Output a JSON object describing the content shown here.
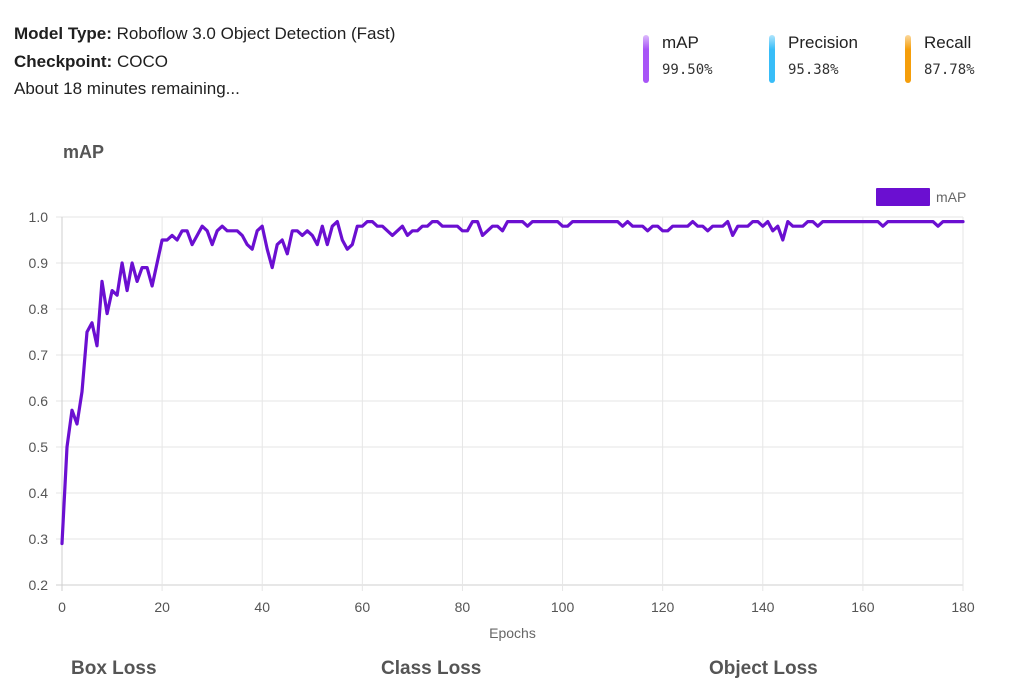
{
  "info": {
    "model_type_label": "Model Type:",
    "model_type_value": "Roboflow 3.0 Object Detection (Fast)",
    "checkpoint_label": "Checkpoint:",
    "checkpoint_value": "COCO",
    "status": "About 18 minutes remaining..."
  },
  "metrics": [
    {
      "label": "mAP",
      "value": "99.50%",
      "color": "#a855f7"
    },
    {
      "label": "Precision",
      "value": "95.38%",
      "color": "#38bdf8"
    },
    {
      "label": "Recall",
      "value": "87.78%",
      "color": "#f59e0b"
    }
  ],
  "chart_title": "mAP",
  "chart_data": {
    "type": "line",
    "xlabel": "Epochs",
    "ylabel": "",
    "xlim": [
      0,
      180
    ],
    "ylim": [
      0.2,
      1.0
    ],
    "xticks": [
      "0",
      "20",
      "40",
      "60",
      "80",
      "100",
      "120",
      "140",
      "160",
      "180"
    ],
    "yticks": [
      "0.2",
      "0.3",
      "0.4",
      "0.5",
      "0.6",
      "0.7",
      "0.8",
      "0.9",
      "1.0"
    ],
    "grid": true,
    "legend": "top-right",
    "series": [
      {
        "name": "mAP",
        "color": "#6b0fd1",
        "x": [
          0,
          1,
          2,
          3,
          4,
          5,
          6,
          7,
          8,
          9,
          10,
          11,
          12,
          13,
          14,
          15,
          16,
          17,
          18,
          19,
          20,
          21,
          22,
          23,
          24,
          25,
          26,
          27,
          28,
          29,
          30,
          31,
          32,
          33,
          34,
          35,
          36,
          37,
          38,
          39,
          40,
          41,
          42,
          43,
          44,
          45,
          46,
          47,
          48,
          49,
          50,
          51,
          52,
          53,
          54,
          55,
          56,
          57,
          58,
          59,
          60,
          61,
          62,
          63,
          64,
          65,
          66,
          67,
          68,
          69,
          70,
          71,
          72,
          73,
          74,
          75,
          76,
          77,
          78,
          79,
          80,
          81,
          82,
          83,
          84,
          85,
          86,
          87,
          88,
          89,
          90,
          91,
          92,
          93,
          94,
          95,
          96,
          97,
          98,
          99,
          100,
          101,
          102,
          103,
          104,
          105,
          106,
          107,
          108,
          109,
          110,
          111,
          112,
          113,
          114,
          115,
          116,
          117,
          118,
          119,
          120,
          121,
          122,
          123,
          124,
          125,
          126,
          127,
          128,
          129,
          130,
          131,
          132,
          133,
          134,
          135,
          136,
          137,
          138,
          139,
          140,
          141,
          142,
          143,
          144,
          145,
          146,
          147,
          148,
          149,
          150,
          151,
          152,
          153,
          154,
          155,
          156,
          157,
          158,
          159,
          160,
          161,
          162,
          163,
          164,
          165,
          166,
          167,
          168,
          169,
          170,
          171,
          172,
          173,
          174,
          175,
          176,
          177,
          178,
          179,
          180
        ],
        "y": [
          0.29,
          0.5,
          0.58,
          0.55,
          0.62,
          0.75,
          0.77,
          0.72,
          0.86,
          0.79,
          0.84,
          0.83,
          0.9,
          0.84,
          0.9,
          0.86,
          0.89,
          0.89,
          0.85,
          0.9,
          0.95,
          0.95,
          0.96,
          0.95,
          0.97,
          0.97,
          0.94,
          0.96,
          0.98,
          0.97,
          0.94,
          0.97,
          0.98,
          0.97,
          0.97,
          0.97,
          0.96,
          0.94,
          0.93,
          0.97,
          0.98,
          0.93,
          0.89,
          0.94,
          0.95,
          0.92,
          0.97,
          0.97,
          0.96,
          0.97,
          0.96,
          0.94,
          0.98,
          0.94,
          0.98,
          0.99,
          0.95,
          0.93,
          0.94,
          0.98,
          0.98,
          0.99,
          0.99,
          0.98,
          0.98,
          0.97,
          0.96,
          0.97,
          0.98,
          0.96,
          0.97,
          0.97,
          0.98,
          0.98,
          0.99,
          0.99,
          0.98,
          0.98,
          0.98,
          0.98,
          0.97,
          0.97,
          0.99,
          0.99,
          0.96,
          0.97,
          0.98,
          0.98,
          0.97,
          0.99,
          0.99,
          0.99,
          0.99,
          0.98,
          0.99,
          0.99,
          0.99,
          0.99,
          0.99,
          0.99,
          0.98,
          0.98,
          0.99,
          0.99,
          0.99,
          0.99,
          0.99,
          0.99,
          0.99,
          0.99,
          0.99,
          0.99,
          0.98,
          0.99,
          0.98,
          0.98,
          0.98,
          0.97,
          0.98,
          0.98,
          0.97,
          0.97,
          0.98,
          0.98,
          0.98,
          0.98,
          0.99,
          0.98,
          0.98,
          0.97,
          0.98,
          0.98,
          0.98,
          0.99,
          0.96,
          0.98,
          0.98,
          0.98,
          0.99,
          0.99,
          0.98,
          0.99,
          0.97,
          0.98,
          0.95,
          0.99,
          0.98,
          0.98,
          0.98,
          0.99,
          0.99,
          0.98,
          0.99,
          0.99,
          0.99,
          0.99,
          0.99,
          0.99,
          0.99,
          0.99,
          0.99,
          0.99,
          0.99,
          0.99,
          0.98,
          0.99,
          0.99,
          0.99,
          0.99,
          0.99,
          0.99,
          0.99,
          0.99,
          0.99,
          0.99,
          0.98,
          0.99,
          0.99,
          0.99,
          0.99,
          0.99
        ]
      }
    ]
  },
  "sections": [
    "Box Loss",
    "Class Loss",
    "Object Loss"
  ]
}
